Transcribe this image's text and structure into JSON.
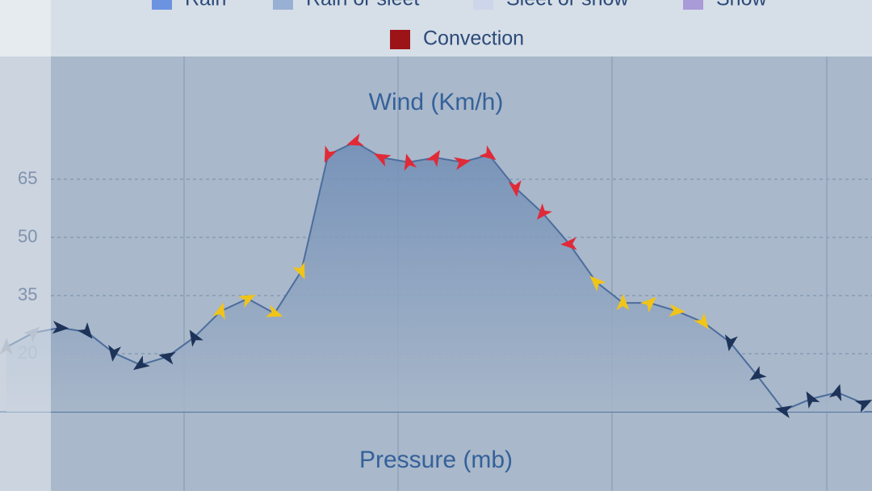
{
  "legend": [
    {
      "name": "Rain",
      "color": "#6b93e0"
    },
    {
      "name": "Rain or sleet",
      "color": "#98b0d4"
    },
    {
      "name": "Sleet or snow",
      "color": "#cdd5ea"
    },
    {
      "name": "Snow",
      "color": "#a99ad8"
    },
    {
      "name": "Convection",
      "color": "#9c1418"
    }
  ],
  "chart_data": {
    "type": "area",
    "title": "Wind (Km/h)",
    "next_title": "Pressure (mb)",
    "values": [
      21.7,
      25.4,
      26.7,
      25.6,
      20.2,
      17.1,
      19.2,
      24.2,
      31,
      34.2,
      30.4,
      41.3,
      71.3,
      74.6,
      70.6,
      69.4,
      70.6,
      69.4,
      71.3,
      62.7,
      56.3,
      48.3,
      38.5,
      33.1,
      33.1,
      31,
      28.1,
      22.9,
      14.4,
      5.4,
      8.3,
      10,
      7.1
    ],
    "marker_colors": [
      "#8a99b0",
      "#8a99b0",
      "#1d3359",
      "#1d3359",
      "#1d3359",
      "#1d3359",
      "#1d3359",
      "#1d3359",
      "#f0c419",
      "#f0c419",
      "#f0c419",
      "#f0c419",
      "#e02a38",
      "#e02a38",
      "#e02a38",
      "#e02a38",
      "#e02a38",
      "#e02a38",
      "#e02a38",
      "#e02a38",
      "#e02a38",
      "#e02a38",
      "#f0c419",
      "#f0c419",
      "#f0c419",
      "#f0c419",
      "#f0c419",
      "#1d3359",
      "#1d3359",
      "#1d3359",
      "#1d3359",
      "#1d3359",
      "#1d3359"
    ],
    "color": "#4c6d9c",
    "ylim": [
      5,
      97
    ],
    "yticks": [
      20,
      35,
      50,
      65
    ],
    "grid": true
  }
}
